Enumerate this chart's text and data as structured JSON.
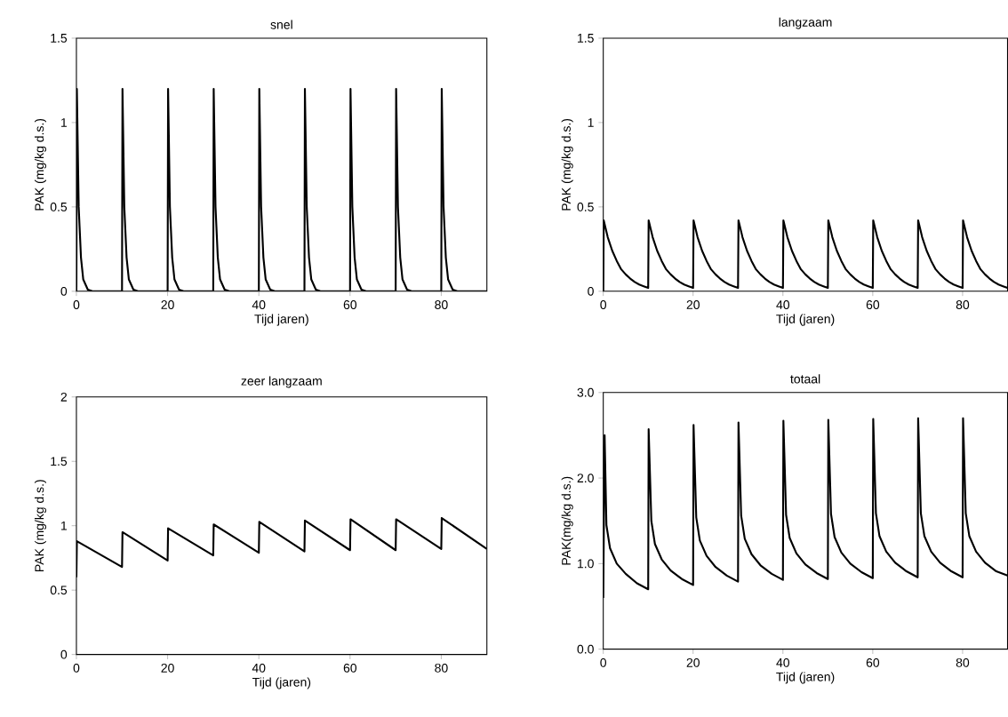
{
  "chart_data": [
    {
      "type": "line",
      "title": "snel",
      "xlabel": "Tijd jaren)",
      "ylabel": "PAK (mg/kg d.s.)",
      "color": "#000000",
      "xlim": [
        0,
        90
      ],
      "xticks": [
        0,
        20,
        40,
        60,
        80
      ],
      "ylim": [
        0,
        1.5
      ],
      "yticks": [
        0,
        0.5,
        1,
        1.5
      ],
      "x": [
        0,
        0.1,
        0.5,
        1,
        1.5,
        2.5,
        3.5,
        10,
        10.1,
        10.5,
        11,
        11.5,
        12.5,
        13.5,
        20,
        20.1,
        20.5,
        21,
        21.5,
        22.5,
        23.5,
        30,
        30.1,
        30.5,
        31,
        31.5,
        32.5,
        33.5,
        40,
        40.1,
        40.5,
        41,
        41.5,
        42.5,
        43.5,
        50,
        50.1,
        50.5,
        51,
        51.5,
        52.5,
        53.5,
        60,
        60.1,
        60.5,
        61,
        61.5,
        62.5,
        63.5,
        70,
        70.1,
        70.5,
        71,
        71.5,
        72.5,
        73.5,
        80,
        80.1,
        80.5,
        81,
        81.5,
        82.5,
        83.5,
        90
      ],
      "values": [
        0,
        1.2,
        0.5,
        0.2,
        0.07,
        0.01,
        0,
        0,
        1.2,
        0.5,
        0.2,
        0.07,
        0.01,
        0,
        0,
        1.2,
        0.5,
        0.2,
        0.07,
        0.01,
        0,
        0,
        1.2,
        0.5,
        0.2,
        0.07,
        0.01,
        0,
        0,
        1.2,
        0.5,
        0.2,
        0.07,
        0.01,
        0,
        0,
        1.2,
        0.5,
        0.2,
        0.07,
        0.01,
        0,
        0,
        1.2,
        0.5,
        0.2,
        0.07,
        0.01,
        0,
        0,
        1.2,
        0.5,
        0.2,
        0.07,
        0.01,
        0,
        0,
        1.2,
        0.5,
        0.2,
        0.07,
        0.01,
        0,
        0
      ]
    },
    {
      "type": "line",
      "title": "langzaam",
      "xlabel": "Tijd (jaren)",
      "ylabel": "PAK (mg/kg d.s.)",
      "color": "#000000",
      "xlim": [
        0,
        90
      ],
      "xticks": [
        0,
        20,
        40,
        60,
        80
      ],
      "ylim": [
        0,
        1.5
      ],
      "yticks": [
        0,
        0.5,
        1,
        1.5
      ],
      "x": [
        0,
        0.1,
        1,
        2,
        3,
        4,
        5,
        6,
        7,
        8,
        9,
        10,
        10.1,
        11,
        12,
        13,
        14,
        15,
        16,
        17,
        18,
        19,
        20,
        20.1,
        21,
        22,
        23,
        24,
        25,
        26,
        27,
        28,
        29,
        30,
        30.1,
        31,
        32,
        33,
        34,
        35,
        36,
        37,
        38,
        39,
        40,
        40.1,
        41,
        42,
        43,
        44,
        45,
        46,
        47,
        48,
        49,
        50,
        50.1,
        51,
        52,
        53,
        54,
        55,
        56,
        57,
        58,
        59,
        60,
        60.1,
        61,
        62,
        63,
        64,
        65,
        66,
        67,
        68,
        69,
        70,
        70.1,
        71,
        72,
        73,
        74,
        75,
        76,
        77,
        78,
        79,
        80,
        80.1,
        81,
        82,
        83,
        84,
        85,
        86,
        87,
        88,
        89,
        90
      ],
      "values": [
        0,
        0.42,
        0.32,
        0.24,
        0.18,
        0.13,
        0.1,
        0.075,
        0.055,
        0.04,
        0.03,
        0.02,
        0.42,
        0.32,
        0.24,
        0.18,
        0.13,
        0.1,
        0.075,
        0.055,
        0.04,
        0.03,
        0.02,
        0.42,
        0.32,
        0.24,
        0.18,
        0.13,
        0.1,
        0.075,
        0.055,
        0.04,
        0.03,
        0.02,
        0.42,
        0.32,
        0.24,
        0.18,
        0.13,
        0.1,
        0.075,
        0.055,
        0.04,
        0.03,
        0.02,
        0.42,
        0.32,
        0.24,
        0.18,
        0.13,
        0.1,
        0.075,
        0.055,
        0.04,
        0.03,
        0.02,
        0.42,
        0.32,
        0.24,
        0.18,
        0.13,
        0.1,
        0.075,
        0.055,
        0.04,
        0.03,
        0.02,
        0.42,
        0.32,
        0.24,
        0.18,
        0.13,
        0.1,
        0.075,
        0.055,
        0.04,
        0.03,
        0.02,
        0.42,
        0.32,
        0.24,
        0.18,
        0.13,
        0.1,
        0.075,
        0.055,
        0.04,
        0.03,
        0.02,
        0.42,
        0.32,
        0.24,
        0.18,
        0.13,
        0.1,
        0.075,
        0.055,
        0.04,
        0.03,
        0.02
      ]
    },
    {
      "type": "line",
      "title": "zeer langzaam",
      "xlabel": "Tijd (jaren)",
      "ylabel": "PAK (mg/kg d.s.)",
      "color": "#000000",
      "xlim": [
        0,
        90
      ],
      "xticks": [
        0,
        20,
        40,
        60,
        80
      ],
      "ylim": [
        0,
        2
      ],
      "yticks": [
        0,
        0.5,
        1,
        1.5,
        2
      ],
      "x": [
        0,
        0.1,
        10,
        10.1,
        20,
        20.1,
        30,
        30.1,
        40,
        40.1,
        50,
        50.1,
        60,
        60.1,
        70,
        70.1,
        80,
        80.1,
        90
      ],
      "values": [
        0.6,
        0.88,
        0.68,
        0.95,
        0.73,
        0.98,
        0.77,
        1.01,
        0.79,
        1.03,
        0.8,
        1.04,
        0.81,
        1.05,
        0.81,
        1.05,
        0.82,
        1.06,
        0.82
      ]
    },
    {
      "type": "line",
      "title": "totaal",
      "xlabel": "Tijd (jaren)",
      "ylabel": "PAK(mg/kg d.s.)",
      "color": "#000000",
      "xlim": [
        0,
        90
      ],
      "xticks": [
        0,
        20,
        40,
        60,
        80
      ],
      "ylim": [
        0,
        3
      ],
      "yticks": [
        {
          "value": 0,
          "label": "0.0"
        },
        {
          "value": 1,
          "label": "1.0"
        },
        {
          "value": 2,
          "label": "2.0"
        },
        {
          "value": 3,
          "label": "3.0"
        }
      ],
      "x": [
        0,
        0.3,
        0.7,
        1.5,
        3,
        5,
        7.5,
        10,
        10.1,
        10.7,
        11.5,
        13,
        15,
        17.5,
        20,
        20.1,
        20.7,
        21.5,
        23,
        25,
        27.5,
        30,
        30.1,
        30.7,
        31.5,
        33,
        35,
        37.5,
        40,
        40.1,
        40.7,
        41.5,
        43,
        45,
        47.5,
        50,
        50.1,
        50.7,
        51.5,
        53,
        55,
        57.5,
        60,
        60.1,
        60.7,
        61.5,
        63,
        65,
        67.5,
        70,
        70.1,
        70.7,
        71.5,
        73,
        75,
        77.5,
        80,
        80.1,
        80.7,
        81.5,
        83,
        85,
        87.5,
        90
      ],
      "values": [
        0.6,
        2.5,
        1.45,
        1.18,
        1.0,
        0.88,
        0.77,
        0.7,
        2.57,
        1.5,
        1.23,
        1.05,
        0.92,
        0.82,
        0.75,
        2.62,
        1.54,
        1.27,
        1.09,
        0.96,
        0.86,
        0.79,
        2.65,
        1.56,
        1.29,
        1.11,
        0.98,
        0.88,
        0.81,
        2.67,
        1.57,
        1.3,
        1.12,
        0.99,
        0.89,
        0.82,
        2.68,
        1.58,
        1.31,
        1.13,
        1.0,
        0.9,
        0.83,
        2.69,
        1.59,
        1.32,
        1.14,
        1.01,
        0.91,
        0.84,
        2.7,
        1.59,
        1.32,
        1.14,
        1.01,
        0.91,
        0.84,
        2.7,
        1.59,
        1.32,
        1.14,
        1.01,
        0.91,
        0.86
      ]
    }
  ]
}
